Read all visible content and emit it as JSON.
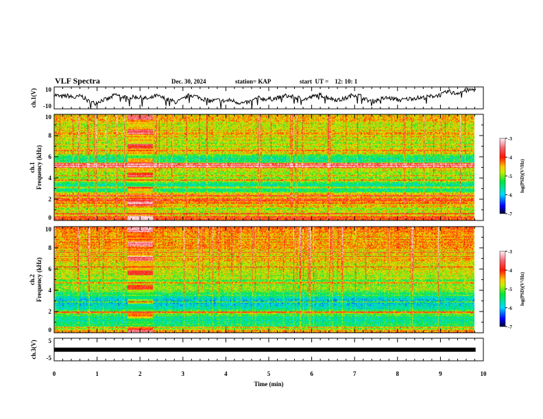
{
  "header": {
    "title": "VLF Spectra",
    "date": "Dec. 30, 2024",
    "station": "station= KAP",
    "start": "start  UT =    12: 10: 1"
  },
  "chart_data": [
    {
      "type": "line",
      "name": "ch1-waveform",
      "ylabel": "ch.1(V)",
      "ylim": [
        -10,
        10
      ],
      "yticks": [
        "10",
        "-10"
      ],
      "xlim": [
        0,
        10
      ],
      "x_end": 9.82,
      "values": [
        3,
        1,
        2,
        0,
        2,
        -3,
        -5,
        -2,
        -1,
        3,
        1,
        0,
        1,
        0,
        -1,
        2,
        0,
        -2,
        -4,
        -1,
        3,
        1,
        -1,
        -3,
        -2,
        -3,
        -2,
        -4,
        -5,
        -3,
        0,
        -1,
        -1,
        0,
        2,
        1,
        0,
        -1,
        1,
        3,
        1,
        -1,
        -2,
        0,
        3,
        2,
        -2,
        -3,
        -1,
        0,
        -1,
        -2,
        -1,
        0,
        0,
        1,
        2,
        3,
        6,
        4,
        6,
        7,
        8
      ]
    },
    {
      "type": "heatmap",
      "name": "ch1-spectrogram",
      "ylabel": "ch.1\nFrequency  (kHz)",
      "ylim": [
        0,
        10
      ],
      "yticks": [
        "0",
        "2",
        "4",
        "6",
        "8",
        "10"
      ],
      "xlim": [
        0,
        10
      ],
      "x_end": 9.82,
      "colorbar": {
        "label": "log(PSD)(V²/Hz)",
        "range": [
          -7,
          -3
        ],
        "ticks": [
          "-3",
          "-4",
          "-5",
          "-6",
          "-7"
        ]
      },
      "profile": [
        [
          0,
          -4.0
        ],
        [
          0.5,
          -4.6
        ],
        [
          1.0,
          -4.9
        ],
        [
          1.8,
          -4.3
        ],
        [
          2.5,
          -4.5
        ],
        [
          2.6,
          -5.3
        ],
        [
          3.5,
          -5.5
        ],
        [
          3.7,
          -5.0
        ],
        [
          4.2,
          -5.1
        ],
        [
          4.9,
          -4.6
        ],
        [
          5.0,
          -3.9
        ],
        [
          5.4,
          -4.0
        ],
        [
          5.5,
          -5.5
        ],
        [
          6.0,
          -5.4
        ],
        [
          6.3,
          -4.7
        ],
        [
          7.0,
          -4.8
        ],
        [
          8.0,
          -4.6
        ],
        [
          9.0,
          -4.7
        ],
        [
          10,
          -4.5
        ]
      ],
      "band_lines_khz": [
        0.3,
        0.6,
        1.9,
        2.3,
        2.6,
        3.1,
        3.8,
        4.2,
        5.1,
        5.3,
        6.6
      ],
      "transmitter_window_min": [
        1.7,
        2.3
      ]
    },
    {
      "type": "heatmap",
      "name": "ch2-spectrogram",
      "ylabel": "ch.2\nFrequency  (kHz)",
      "ylim": [
        0,
        10
      ],
      "yticks": [
        "0",
        "2",
        "4",
        "6",
        "8",
        "10"
      ],
      "xlim": [
        0,
        10
      ],
      "x_end": 9.82,
      "colorbar": {
        "label": "log(PSD)(V²/Hz)",
        "range": [
          -7,
          -3
        ],
        "ticks": [
          "-3",
          "-4",
          "-5",
          "-6",
          "-7"
        ]
      },
      "profile": [
        [
          0,
          -4.2
        ],
        [
          0.5,
          -5.4
        ],
        [
          1.5,
          -5.6
        ],
        [
          1.9,
          -4.6
        ],
        [
          2.2,
          -5.6
        ],
        [
          3.0,
          -5.9
        ],
        [
          3.5,
          -5.5
        ],
        [
          4.0,
          -5.0
        ],
        [
          5.0,
          -5.0
        ],
        [
          6.0,
          -4.8
        ],
        [
          7.0,
          -4.6
        ],
        [
          8.0,
          -4.5
        ],
        [
          10,
          -4.4
        ]
      ],
      "band_lines_khz": [
        0.2,
        0.5,
        1.9,
        2.9,
        3.5,
        4.7,
        6.2,
        7.2,
        7.6
      ],
      "transmitter_window_min": [
        1.7,
        2.3
      ]
    },
    {
      "type": "line",
      "name": "ch3-waveform",
      "ylabel": "ch.3(V)",
      "ylim": [
        -5,
        5
      ],
      "yticks": [
        "5",
        "-5"
      ],
      "xlim": [
        0,
        10
      ],
      "x_end": 9.82,
      "values": [
        -0.1,
        -0.1
      ],
      "xlabel": "Time  (min)",
      "xticks": [
        "0",
        "1",
        "2",
        "3",
        "4",
        "5",
        "6",
        "7",
        "8",
        "9",
        "10"
      ]
    }
  ]
}
